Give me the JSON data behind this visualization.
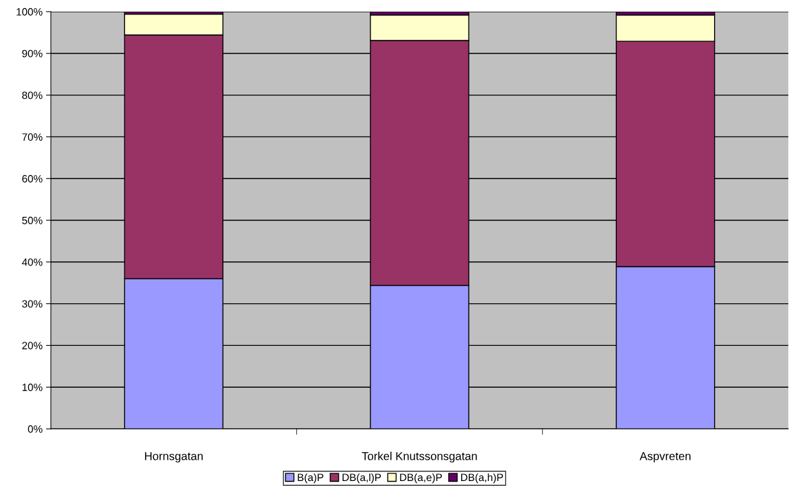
{
  "chart_data": {
    "type": "bar",
    "stacked": true,
    "categories": [
      "Hornsgatan",
      "Torkel Knutssonsgatan",
      "Aspvreten"
    ],
    "series": [
      {
        "name": "B(a)P",
        "color": "#9999ff",
        "values": [
          36.0,
          34.4,
          38.9
        ]
      },
      {
        "name": "DB(a,l)P",
        "color": "#993366",
        "values": [
          58.4,
          58.7,
          54.0
        ]
      },
      {
        "name": "DB(a,e)P",
        "color": "#ffffcc",
        "values": [
          5.0,
          6.1,
          6.3
        ]
      },
      {
        "name": "DB(a,h)P",
        "color": "#660066",
        "values": [
          0.6,
          0.8,
          0.8
        ]
      }
    ],
    "ylim": [
      0,
      100
    ],
    "yticks": [
      {
        "value": 0,
        "label": "0%"
      },
      {
        "value": 10,
        "label": "10%"
      },
      {
        "value": 20,
        "label": "20%"
      },
      {
        "value": 30,
        "label": "30%"
      },
      {
        "value": 40,
        "label": "40%"
      },
      {
        "value": 50,
        "label": "50%"
      },
      {
        "value": 60,
        "label": "60%"
      },
      {
        "value": 70,
        "label": "70%"
      },
      {
        "value": 80,
        "label": "80%"
      },
      {
        "value": 90,
        "label": "90%"
      },
      {
        "value": 100,
        "label": "100%"
      }
    ],
    "grid": "y",
    "legend": "bottom"
  }
}
